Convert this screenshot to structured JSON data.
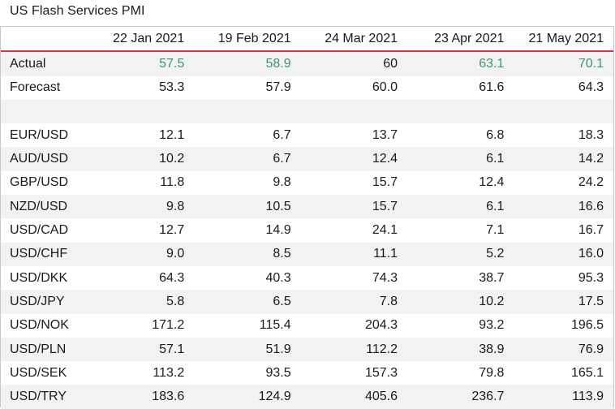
{
  "title": "US Flash Services PMI",
  "columns": [
    "22 Jan 2021",
    "19 Feb 2021",
    "24 Mar 2021",
    "23 Apr 2021",
    "21 May 2021"
  ],
  "actual": {
    "label": "Actual",
    "values": [
      "57.5",
      "58.9",
      "60",
      "63.1",
      "70.1"
    ],
    "highlight": [
      true,
      true,
      false,
      true,
      true
    ],
    "highlight_color": "#3a9a6a"
  },
  "forecast": {
    "label": "Forecast",
    "values": [
      "53.3",
      "57.9",
      "60.0",
      "61.6",
      "64.3"
    ]
  },
  "pairs": [
    {
      "label": "EUR/USD",
      "values": [
        "12.1",
        "6.7",
        "13.7",
        "6.8",
        "18.3"
      ]
    },
    {
      "label": "AUD/USD",
      "values": [
        "10.2",
        "6.7",
        "12.4",
        "6.1",
        "14.2"
      ]
    },
    {
      "label": "GBP/USD",
      "values": [
        "11.8",
        "9.8",
        "15.7",
        "12.4",
        "24.2"
      ]
    },
    {
      "label": "NZD/USD",
      "values": [
        "9.8",
        "10.5",
        "15.7",
        "6.1",
        "16.6"
      ]
    },
    {
      "label": "USD/CAD",
      "values": [
        "12.7",
        "14.9",
        "24.1",
        "7.1",
        "16.7"
      ]
    },
    {
      "label": "USD/CHF",
      "values": [
        "9.0",
        "8.5",
        "11.1",
        "5.2",
        "16.0"
      ]
    },
    {
      "label": "USD/DKK",
      "values": [
        "64.3",
        "40.3",
        "74.3",
        "38.7",
        "95.3"
      ]
    },
    {
      "label": "USD/JPY",
      "values": [
        "5.8",
        "6.5",
        "7.8",
        "10.2",
        "17.5"
      ]
    },
    {
      "label": "USD/NOK",
      "values": [
        "171.2",
        "115.4",
        "204.3",
        "93.2",
        "196.5"
      ]
    },
    {
      "label": "USD/PLN",
      "values": [
        "57.1",
        "51.9",
        "112.2",
        "38.9",
        "76.9"
      ]
    },
    {
      "label": "USD/SEK",
      "values": [
        "113.2",
        "93.5",
        "157.3",
        "79.8",
        "165.1"
      ]
    },
    {
      "label": "USD/TRY",
      "values": [
        "183.6",
        "124.9",
        "405.6",
        "236.7",
        "113.9"
      ]
    }
  ],
  "colors": {
    "header_rule": "#d9333f",
    "shade": "#f2f2f2",
    "positive": "#3a9a6a"
  }
}
